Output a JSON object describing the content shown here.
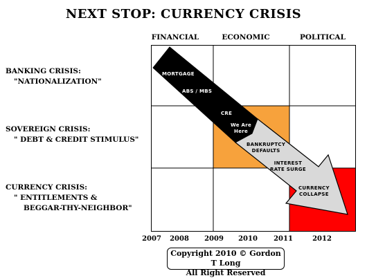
{
  "title": "NEXT STOP: CURRENCY CRISIS",
  "columns": [
    "FINANCIAL",
    "ECONOMIC",
    "POLITICAL"
  ],
  "rows": [
    {
      "line1": "BANKING CRISIS:",
      "line2": "\"NATIONALIZATION\"",
      "line3": ""
    },
    {
      "line1": "SOVEREIGN CRISIS:",
      "line2": "\" DEBT & CREDIT STIMULUS\"",
      "line3": ""
    },
    {
      "line1": "CURRENCY CRISIS:",
      "line2": "\" ENTITLEMENTS &",
      "line3": "BEGGAR-THY-NEIGHBOR\""
    }
  ],
  "years": [
    "2007",
    "2008",
    "2009",
    "2010",
    "2011",
    "2012"
  ],
  "arrow_labels": {
    "mortgage": "MORTGAGE",
    "abs_mbs": "ABS / MBS",
    "cre": "CRE",
    "we_are": "We Are",
    "here": "Here",
    "bankruptcy": "BANKRUPTCY",
    "defaults": "DEFAULTS",
    "interest": "INTEREST",
    "rate_surge": "RATE SURGE",
    "currency": "CURRENCY",
    "collapse": "COLLAPSE"
  },
  "colors": {
    "sovereign_cell": "#F7A23C",
    "currency_cell": "#FF0000",
    "arrow_dark": "#000000",
    "arrow_light": "#d9d9d9"
  },
  "copyright": {
    "line1": "Copyright 2010 © Gordon T Long",
    "line2": "All Right Reserved"
  }
}
